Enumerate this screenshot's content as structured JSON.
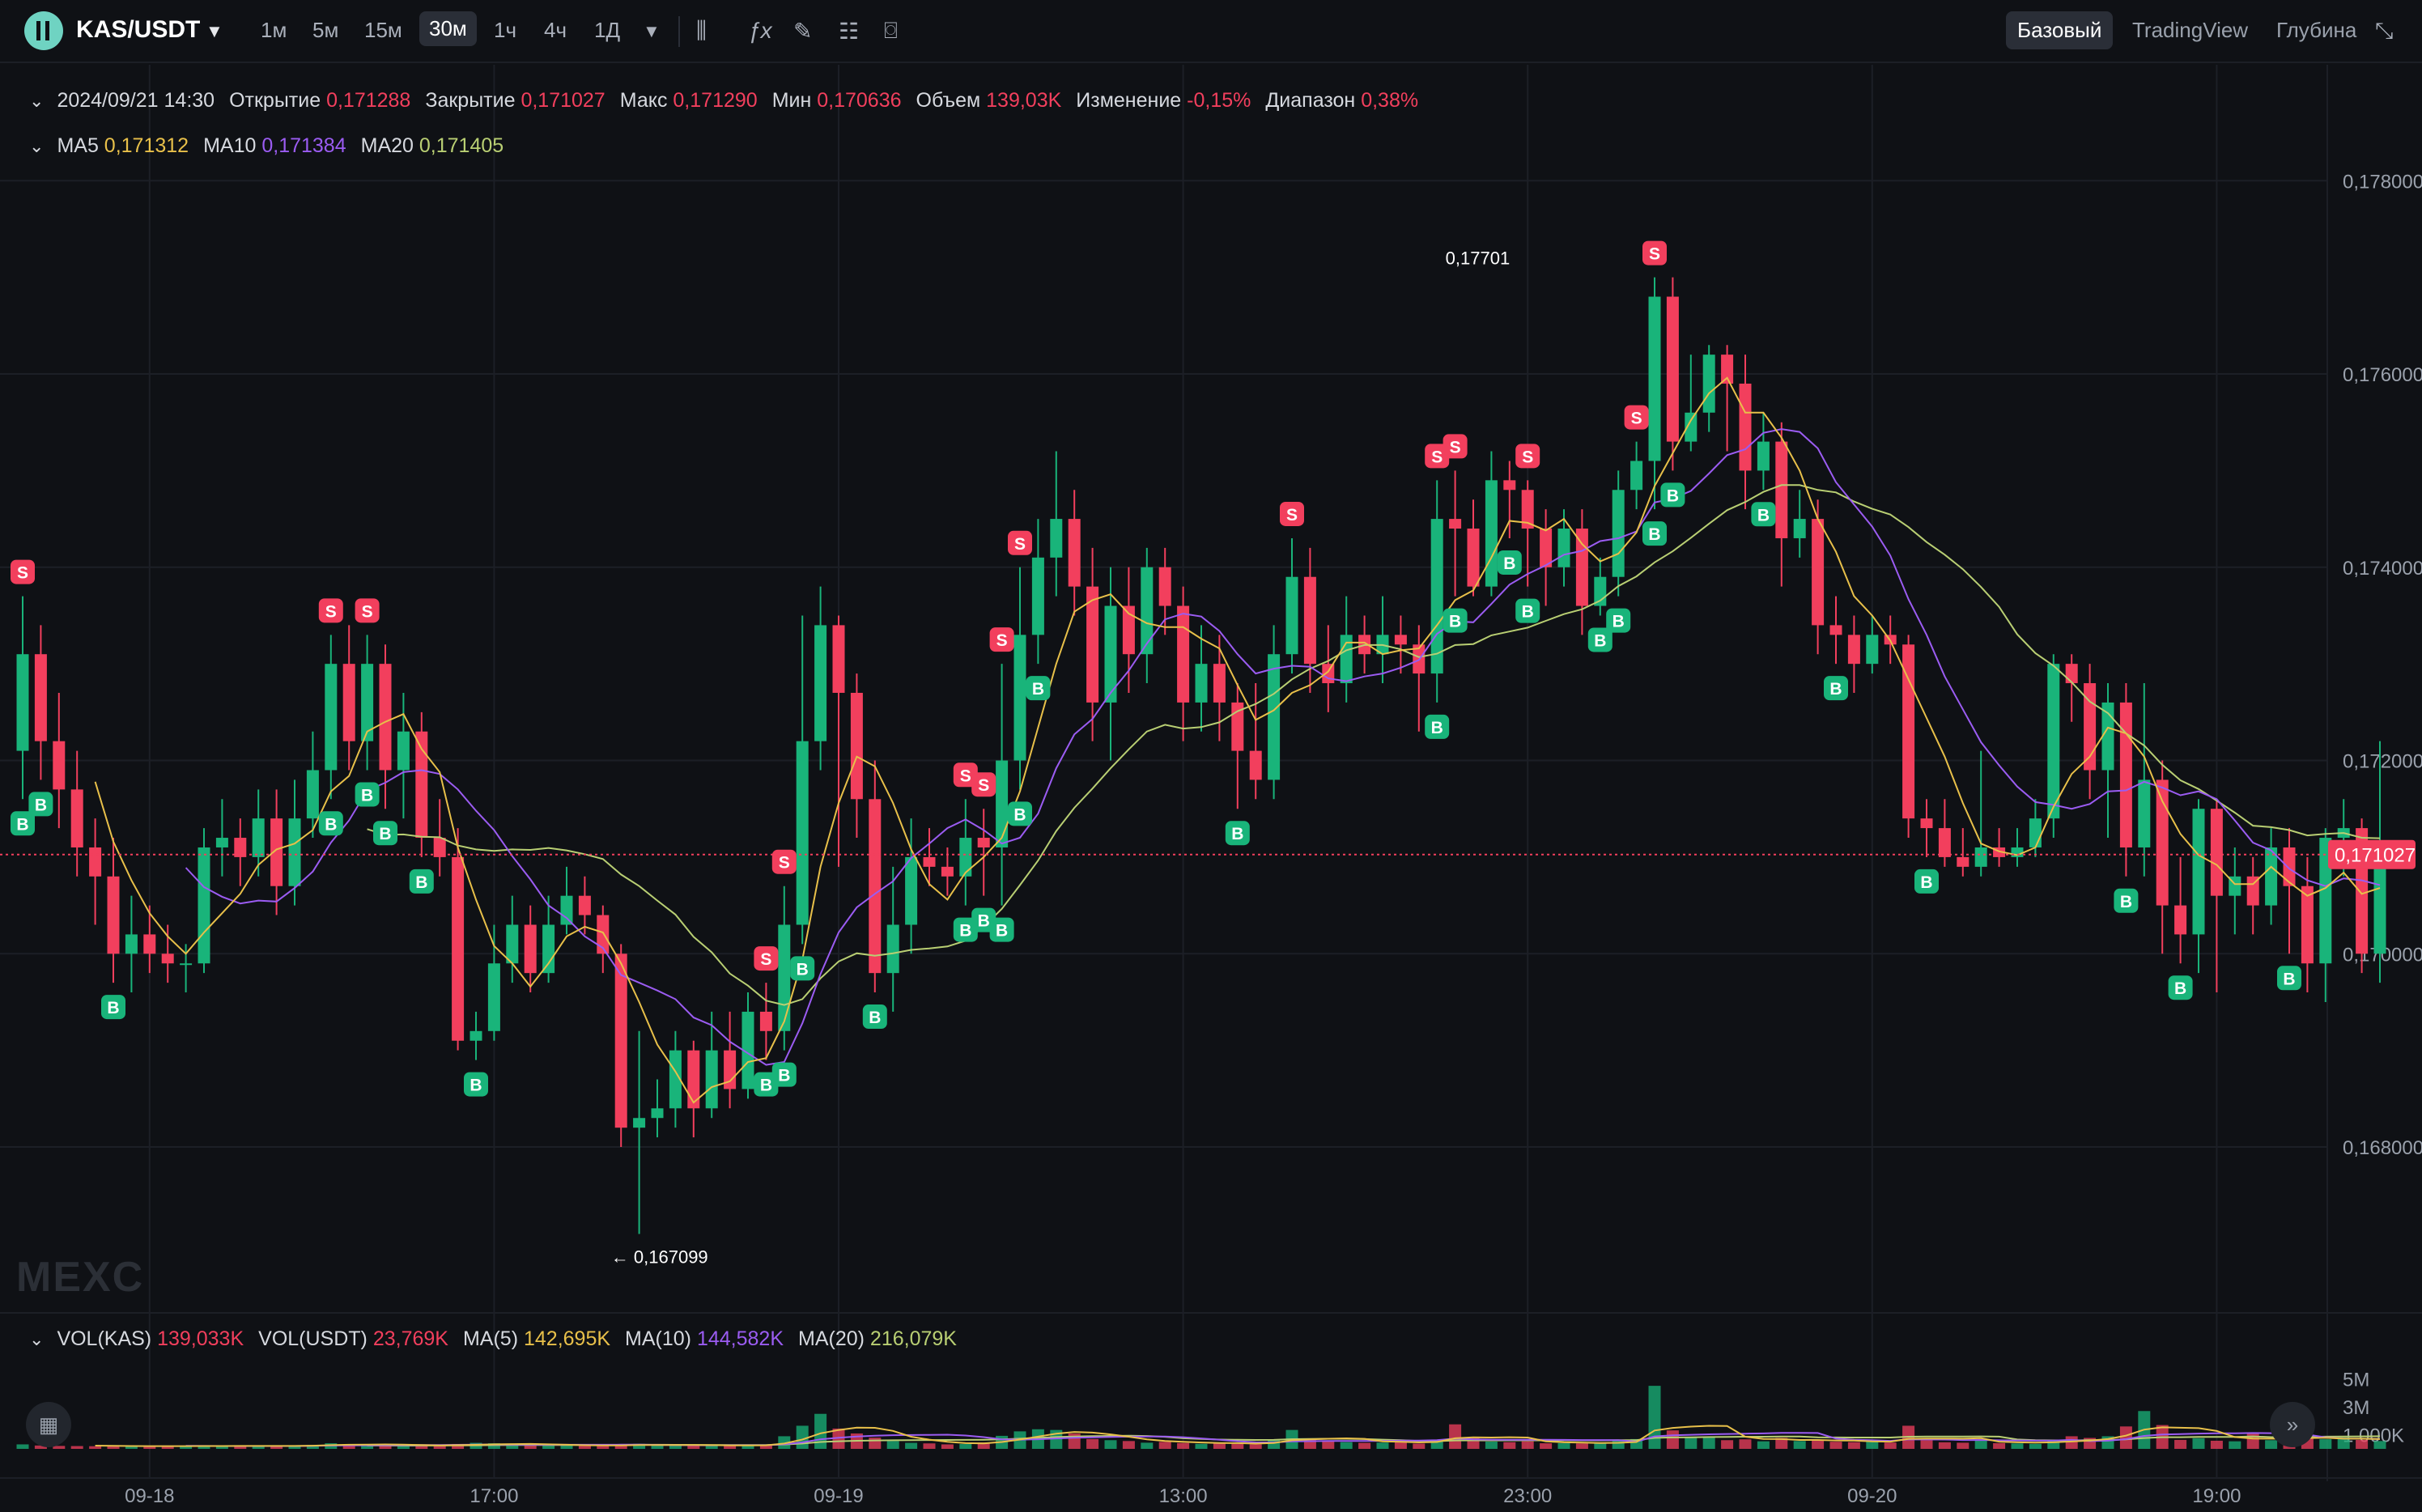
{
  "toolbar": {
    "pair": "KAS/USDT",
    "timeframes": [
      "1м",
      "5м",
      "15м",
      "30м",
      "1ч",
      "4ч",
      "1Д"
    ],
    "active_timeframe": "30м",
    "views": [
      "Базовый",
      "TradingView",
      "Глубина"
    ],
    "active_view": "Базовый",
    "icons": [
      "chevron-down-icon",
      "candles-icon",
      "fx-indicator-icon",
      "pencil-icon",
      "layout-icon",
      "camera-icon",
      "fullscreen-icon"
    ]
  },
  "ohlc": {
    "datetime": "2024/09/21 14:30",
    "open_label": "Открытие",
    "open": "0,171288",
    "close_label": "Закрытие",
    "close": "0,171027",
    "high_label": "Макс",
    "high": "0,171290",
    "low_label": "Мин",
    "low": "0,170636",
    "volume_label": "Объем",
    "volume": "139,03K",
    "change_label": "Изменение",
    "change": "-0,15%",
    "range_label": "Диапазон",
    "range": "0,38%"
  },
  "ma_legend": {
    "ma5_label": "MA5",
    "ma5": "0,171312",
    "ma10_label": "MA10",
    "ma10": "0,171384",
    "ma20_label": "MA20",
    "ma20": "0,171405"
  },
  "vol_legend": {
    "vol_kas_label": "VOL(KAS)",
    "vol_kas": "139,033K",
    "vol_usdt_label": "VOL(USDT)",
    "vol_usdt": "23,769K",
    "ma5_label": "MA(5)",
    "ma5": "142,695K",
    "ma10_label": "MA(10)",
    "ma10": "144,582K",
    "ma20_label": "MA(20)",
    "ma20": "216,079K"
  },
  "watermark": "MEXC",
  "colors": {
    "up": "#19b47a",
    "down": "#f23f5d",
    "ma5": "#e8c04a",
    "ma10": "#9b5cf2",
    "ma20": "#b9cf73",
    "background": "#0f1115",
    "grid": "#1c1f26"
  },
  "chart_data": {
    "type": "candlestick",
    "price_ticks": [
      "0,178000",
      "0,176000",
      "0,174000",
      "0,172000",
      "0,170000",
      "0,168000"
    ],
    "price_tick_values": [
      0.178,
      0.176,
      0.174,
      0.172,
      0.17,
      0.168
    ],
    "price_range": [
      0.1663,
      0.1792
    ],
    "last_price": 0.171027,
    "last_price_label": "0,171027",
    "high_annotation": {
      "index": 83,
      "price": 0.177,
      "label": "0,17701"
    },
    "low_annotation": {
      "index": 32,
      "price": 0.167099,
      "label": "0,167099"
    },
    "volume_ticks": [
      "5M",
      "3M",
      "1 000K"
    ],
    "volume_tick_values": [
      5000000,
      3000000,
      1000000
    ],
    "time_labels": [
      "09-18",
      "17:00",
      "09-19",
      "13:00",
      "23:00",
      "09-20",
      "19:00"
    ],
    "time_label_indices": [
      7,
      26,
      45,
      64,
      83,
      102,
      121
    ],
    "candles": [
      [
        0.1721,
        0.1731,
        0.1737,
        0.1716
      ],
      [
        0.1731,
        0.1722,
        0.1734,
        0.1718
      ],
      [
        0.1722,
        0.1717,
        0.1727,
        0.1713
      ],
      [
        0.1717,
        0.1711,
        0.1721,
        0.1708
      ],
      [
        0.1711,
        0.1708,
        0.1714,
        0.1703
      ],
      [
        0.1708,
        0.17,
        0.1712,
        0.1697
      ],
      [
        0.17,
        0.1702,
        0.1706,
        0.1696
      ],
      [
        0.1702,
        0.17,
        0.1705,
        0.1698
      ],
      [
        0.17,
        0.1699,
        0.1703,
        0.1697
      ],
      [
        0.1699,
        0.1699,
        0.1701,
        0.1696
      ],
      [
        0.1699,
        0.1711,
        0.1713,
        0.1698
      ],
      [
        0.1711,
        0.1712,
        0.1716,
        0.1708
      ],
      [
        0.1712,
        0.171,
        0.1714,
        0.1707
      ],
      [
        0.171,
        0.1714,
        0.1717,
        0.1708
      ],
      [
        0.1714,
        0.1707,
        0.1717,
        0.1704
      ],
      [
        0.1707,
        0.1714,
        0.1718,
        0.1705
      ],
      [
        0.1714,
        0.1719,
        0.1723,
        0.1712
      ],
      [
        0.1719,
        0.173,
        0.1733,
        0.1716
      ],
      [
        0.173,
        0.1722,
        0.1734,
        0.1719
      ],
      [
        0.1722,
        0.173,
        0.1733,
        0.1719
      ],
      [
        0.173,
        0.1719,
        0.1732,
        0.1715
      ],
      [
        0.1719,
        0.1723,
        0.1727,
        0.1714
      ],
      [
        0.1723,
        0.1712,
        0.1725,
        0.171
      ],
      [
        0.1712,
        0.171,
        0.1716,
        0.1708
      ],
      [
        0.171,
        0.1691,
        0.1713,
        0.169
      ],
      [
        0.1691,
        0.1692,
        0.1694,
        0.1689
      ],
      [
        0.1692,
        0.1699,
        0.1703,
        0.1691
      ],
      [
        0.1699,
        0.1703,
        0.1706,
        0.1697
      ],
      [
        0.1703,
        0.1698,
        0.1705,
        0.1696
      ],
      [
        0.1698,
        0.1703,
        0.1706,
        0.1697
      ],
      [
        0.1703,
        0.1706,
        0.1709,
        0.1702
      ],
      [
        0.1706,
        0.1704,
        0.1708,
        0.1702
      ],
      [
        0.1704,
        0.17,
        0.1705,
        0.1698
      ],
      [
        0.17,
        0.1682,
        0.1701,
        0.168
      ],
      [
        0.1682,
        0.1683,
        0.1692,
        0.1671
      ],
      [
        0.1683,
        0.1684,
        0.1687,
        0.1681
      ],
      [
        0.1684,
        0.169,
        0.1692,
        0.1682
      ],
      [
        0.169,
        0.1684,
        0.1691,
        0.1681
      ],
      [
        0.1684,
        0.169,
        0.1694,
        0.1683
      ],
      [
        0.169,
        0.1686,
        0.1694,
        0.1684
      ],
      [
        0.1686,
        0.1694,
        0.1696,
        0.1685
      ],
      [
        0.1694,
        0.1692,
        0.1697,
        0.1689
      ],
      [
        0.1692,
        0.1703,
        0.1707,
        0.169
      ],
      [
        0.1703,
        0.1722,
        0.1735,
        0.1701
      ],
      [
        0.1722,
        0.1734,
        0.1738,
        0.1719
      ],
      [
        0.1734,
        0.1727,
        0.1735,
        0.1709
      ],
      [
        0.1727,
        0.1716,
        0.1729,
        0.1712
      ],
      [
        0.1716,
        0.1698,
        0.172,
        0.1696
      ],
      [
        0.1698,
        0.1703,
        0.1709,
        0.1694
      ],
      [
        0.1703,
        0.171,
        0.1714,
        0.17
      ],
      [
        0.171,
        0.1709,
        0.1713,
        0.1707
      ],
      [
        0.1709,
        0.1708,
        0.1711,
        0.1706
      ],
      [
        0.1708,
        0.1712,
        0.1716,
        0.1705
      ],
      [
        0.1712,
        0.1711,
        0.1715,
        0.1706
      ],
      [
        0.1711,
        0.172,
        0.173,
        0.1705
      ],
      [
        0.172,
        0.1733,
        0.174,
        0.1717
      ],
      [
        0.1733,
        0.1741,
        0.1745,
        0.173
      ],
      [
        0.1741,
        0.1745,
        0.1752,
        0.1737
      ],
      [
        0.1745,
        0.1738,
        0.1748,
        0.1735
      ],
      [
        0.1738,
        0.1726,
        0.1742,
        0.1722
      ],
      [
        0.1726,
        0.1736,
        0.174,
        0.172
      ],
      [
        0.1736,
        0.1731,
        0.174,
        0.1727
      ],
      [
        0.1731,
        0.174,
        0.1742,
        0.1728
      ],
      [
        0.174,
        0.1736,
        0.1742,
        0.1733
      ],
      [
        0.1736,
        0.1726,
        0.1738,
        0.1722
      ],
      [
        0.1726,
        0.173,
        0.1734,
        0.1723
      ],
      [
        0.173,
        0.1726,
        0.1733,
        0.1722
      ],
      [
        0.1726,
        0.1721,
        0.1728,
        0.1715
      ],
      [
        0.1721,
        0.1718,
        0.1728,
        0.1716
      ],
      [
        0.1718,
        0.1731,
        0.1734,
        0.1716
      ],
      [
        0.1731,
        0.1739,
        0.1743,
        0.1729
      ],
      [
        0.1739,
        0.173,
        0.1742,
        0.1727
      ],
      [
        0.173,
        0.1728,
        0.1734,
        0.1725
      ],
      [
        0.1728,
        0.1733,
        0.1737,
        0.1726
      ],
      [
        0.1733,
        0.1731,
        0.1735,
        0.1729
      ],
      [
        0.1731,
        0.1733,
        0.1737,
        0.1728
      ],
      [
        0.1733,
        0.1732,
        0.1735,
        0.1729
      ],
      [
        0.1732,
        0.1729,
        0.1734,
        0.1723
      ],
      [
        0.1729,
        0.1745,
        0.1749,
        0.1726
      ],
      [
        0.1745,
        0.1744,
        0.175,
        0.1737
      ],
      [
        0.1744,
        0.1738,
        0.1747,
        0.1737
      ],
      [
        0.1738,
        0.1749,
        0.1752,
        0.1737
      ],
      [
        0.1749,
        0.1748,
        0.1751,
        0.1743
      ],
      [
        0.1748,
        0.1744,
        0.1749,
        0.1738
      ],
      [
        0.1744,
        0.174,
        0.1746,
        0.1736
      ],
      [
        0.174,
        0.1744,
        0.1746,
        0.1738
      ],
      [
        0.1744,
        0.1736,
        0.1746,
        0.1733
      ],
      [
        0.1736,
        0.1739,
        0.1741,
        0.1735
      ],
      [
        0.1739,
        0.1748,
        0.175,
        0.1737
      ],
      [
        0.1748,
        0.1751,
        0.1753,
        0.1746
      ],
      [
        0.1751,
        0.1768,
        0.177,
        0.1746
      ],
      [
        0.1768,
        0.1753,
        0.177,
        0.175
      ],
      [
        0.1753,
        0.1756,
        0.1762,
        0.1752
      ],
      [
        0.1756,
        0.1762,
        0.1763,
        0.1754
      ],
      [
        0.1762,
        0.1759,
        0.1763,
        0.1752
      ],
      [
        0.1759,
        0.175,
        0.1762,
        0.1746
      ],
      [
        0.175,
        0.1753,
        0.1756,
        0.1748
      ],
      [
        0.1753,
        0.1743,
        0.1755,
        0.1738
      ],
      [
        0.1743,
        0.1745,
        0.1748,
        0.1741
      ],
      [
        0.1745,
        0.1734,
        0.1747,
        0.1731
      ],
      [
        0.1734,
        0.1733,
        0.1737,
        0.173
      ],
      [
        0.1733,
        0.173,
        0.1735,
        0.1727
      ],
      [
        0.173,
        0.1733,
        0.1735,
        0.1729
      ],
      [
        0.1733,
        0.1732,
        0.1735,
        0.173
      ],
      [
        0.1732,
        0.1714,
        0.1733,
        0.1712
      ],
      [
        0.1714,
        0.1713,
        0.1716,
        0.171
      ],
      [
        0.1713,
        0.171,
        0.1716,
        0.1709
      ],
      [
        0.171,
        0.1709,
        0.1713,
        0.1708
      ],
      [
        0.1709,
        0.1711,
        0.1721,
        0.1708
      ],
      [
        0.1711,
        0.171,
        0.1713,
        0.1709
      ],
      [
        0.171,
        0.1711,
        0.1713,
        0.1709
      ],
      [
        0.1711,
        0.1714,
        0.1716,
        0.171
      ],
      [
        0.1714,
        0.173,
        0.1731,
        0.1712
      ],
      [
        0.173,
        0.1728,
        0.1731,
        0.1724
      ],
      [
        0.1728,
        0.1719,
        0.173,
        0.1716
      ],
      [
        0.1719,
        0.1726,
        0.1728,
        0.1712
      ],
      [
        0.1726,
        0.1711,
        0.1728,
        0.1708
      ],
      [
        0.1711,
        0.1718,
        0.1728,
        0.1708
      ],
      [
        0.1718,
        0.1705,
        0.172,
        0.17
      ],
      [
        0.1705,
        0.1702,
        0.171,
        0.1699
      ],
      [
        0.1702,
        0.1715,
        0.1716,
        0.1698
      ],
      [
        0.1715,
        0.1706,
        0.1716,
        0.1696
      ],
      [
        0.1706,
        0.1708,
        0.1711,
        0.1702
      ],
      [
        0.1708,
        0.1705,
        0.171,
        0.1702
      ],
      [
        0.1705,
        0.1711,
        0.1713,
        0.1703
      ],
      [
        0.1711,
        0.1707,
        0.1713,
        0.17
      ],
      [
        0.1707,
        0.1699,
        0.171,
        0.1696
      ],
      [
        0.1699,
        0.1712,
        0.1713,
        0.1695
      ],
      [
        0.1712,
        0.1713,
        0.1716,
        0.1708
      ],
      [
        0.1713,
        0.17,
        0.1714,
        0.1698
      ],
      [
        0.17,
        0.171,
        0.1722,
        0.1697
      ]
    ],
    "volumes_k": [
      320,
      240,
      210,
      200,
      190,
      230,
      180,
      170,
      210,
      190,
      250,
      200,
      180,
      210,
      190,
      260,
      280,
      400,
      340,
      260,
      300,
      220,
      240,
      210,
      350,
      430,
      400,
      310,
      260,
      230,
      270,
      220,
      240,
      280,
      360,
      250,
      230,
      260,
      220,
      280,
      260,
      240,
      900,
      1650,
      2500,
      1450,
      1100,
      800,
      560,
      430,
      390,
      320,
      350,
      460,
      930,
      1250,
      1400,
      1350,
      1100,
      700,
      620,
      560,
      440,
      500,
      420,
      360,
      400,
      360,
      330,
      620,
      1350,
      720,
      600,
      480,
      430,
      450,
      560,
      380,
      640,
      1750,
      760,
      520,
      480,
      540,
      400,
      410,
      390,
      380,
      590,
      700,
      4500,
      1320,
      820,
      880,
      620,
      680,
      540,
      780,
      560,
      620,
      510,
      480,
      500,
      450,
      1650,
      620,
      470,
      440,
      620,
      410,
      390,
      360,
      560,
      900,
      780,
      900,
      1600,
      2700,
      1700,
      640,
      760,
      580,
      540,
      1150,
      620,
      720,
      780,
      690,
      820,
      640,
      560
    ],
    "signals": [
      {
        "i": 0,
        "type": "S"
      },
      {
        "i": 0,
        "type": "B"
      },
      {
        "i": 1,
        "type": "B"
      },
      {
        "i": 5,
        "type": "B"
      },
      {
        "i": 17,
        "type": "S"
      },
      {
        "i": 17,
        "type": "B"
      },
      {
        "i": 19,
        "type": "S"
      },
      {
        "i": 19,
        "type": "B"
      },
      {
        "i": 20,
        "type": "B"
      },
      {
        "i": 22,
        "type": "B"
      },
      {
        "i": 25,
        "type": "B"
      },
      {
        "i": 41,
        "type": "S"
      },
      {
        "i": 41,
        "type": "B"
      },
      {
        "i": 42,
        "type": "S"
      },
      {
        "i": 42,
        "type": "B"
      },
      {
        "i": 43,
        "type": "B"
      },
      {
        "i": 47,
        "type": "B"
      },
      {
        "i": 52,
        "type": "S"
      },
      {
        "i": 52,
        "type": "B"
      },
      {
        "i": 53,
        "type": "S"
      },
      {
        "i": 53,
        "type": "B"
      },
      {
        "i": 54,
        "type": "S"
      },
      {
        "i": 54,
        "type": "B"
      },
      {
        "i": 55,
        "type": "S"
      },
      {
        "i": 55,
        "type": "B"
      },
      {
        "i": 56,
        "type": "B"
      },
      {
        "i": 67,
        "type": "B"
      },
      {
        "i": 70,
        "type": "S"
      },
      {
        "i": 78,
        "type": "S"
      },
      {
        "i": 78,
        "type": "B"
      },
      {
        "i": 79,
        "type": "S"
      },
      {
        "i": 79,
        "type": "B"
      },
      {
        "i": 82,
        "type": "B"
      },
      {
        "i": 83,
        "type": "S"
      },
      {
        "i": 83,
        "type": "B"
      },
      {
        "i": 87,
        "type": "B"
      },
      {
        "i": 88,
        "type": "B"
      },
      {
        "i": 89,
        "type": "S"
      },
      {
        "i": 90,
        "type": "S"
      },
      {
        "i": 90,
        "type": "B"
      },
      {
        "i": 91,
        "type": "B"
      },
      {
        "i": 96,
        "type": "B"
      },
      {
        "i": 100,
        "type": "B"
      },
      {
        "i": 105,
        "type": "B"
      },
      {
        "i": 116,
        "type": "B"
      },
      {
        "i": 119,
        "type": "B"
      },
      {
        "i": 125,
        "type": "B"
      }
    ],
    "signal_colors": {
      "S": "#f23f5d",
      "B": "#19b47a"
    }
  }
}
